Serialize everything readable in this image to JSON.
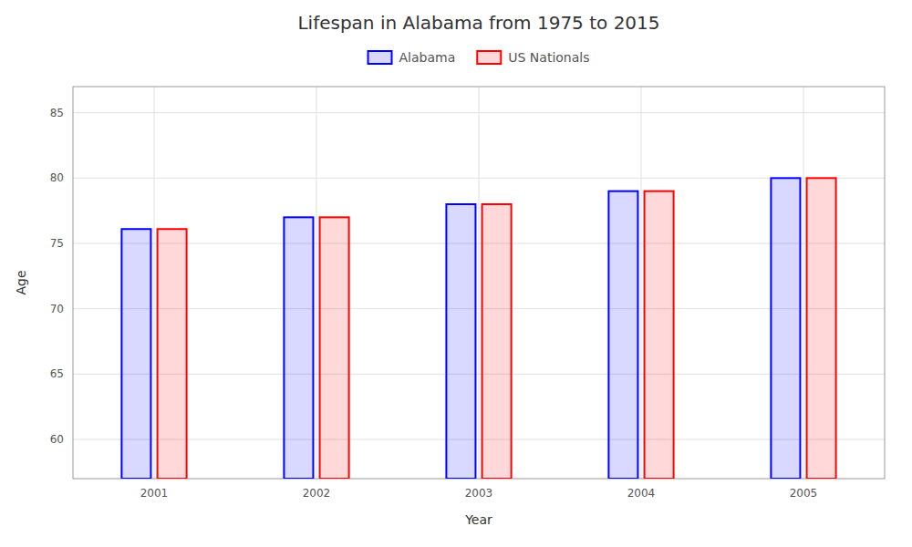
{
  "chart_data": {
    "type": "bar",
    "title": "Lifespan in Alabama from 1975 to 2015",
    "x_label": "Year",
    "y_label": "Age",
    "categories": [
      "2001",
      "2002",
      "2003",
      "2004",
      "2005"
    ],
    "series": [
      {
        "name": "Alabama",
        "color": "#0000ff",
        "values": [
          76.1,
          77.0,
          78.0,
          79.0,
          80.0
        ]
      },
      {
        "name": "US Nationals",
        "color": "#ff0000",
        "values": [
          76.1,
          77.0,
          78.0,
          79.0,
          80.0
        ]
      }
    ],
    "ylim": [
      57,
      87
    ],
    "yticks": [
      60,
      65,
      70,
      75,
      80,
      85
    ],
    "grid": true,
    "legend": "top"
  }
}
